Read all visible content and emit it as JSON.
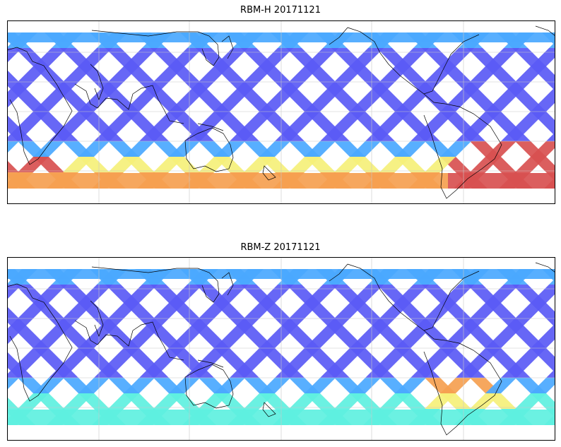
{
  "panels": [
    {
      "id": "top",
      "title": "RBM-H 20171121",
      "colormap": "jet",
      "intensity": "high-south"
    },
    {
      "id": "bottom",
      "title": "RBM-Z 20171121",
      "colormap": "jet",
      "intensity": "moderate"
    }
  ],
  "colors": {
    "low": "#5a5af5",
    "mid_low": "#4aa8ff",
    "mid": "#5ef0e0",
    "mid_high": "#f5f07a",
    "high": "#f5a050",
    "max": "#d85050",
    "coastline": "#000000",
    "gridline": "#c8c8c8"
  }
}
